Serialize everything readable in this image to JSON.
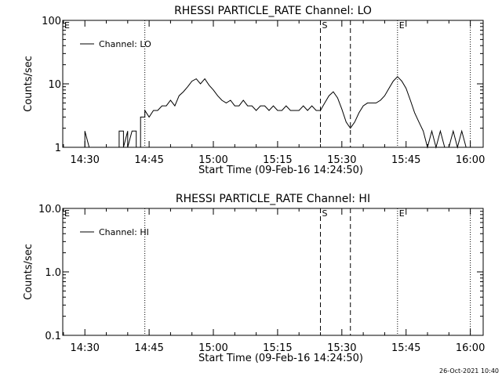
{
  "window": {
    "timestamp": "26-Oct-2021 10:40"
  },
  "chart_data": [
    {
      "type": "line",
      "title": "RHESSI PARTICLE_RATE Channel: LO",
      "xlabel": "Start Time (09-Feb-16 14:24:50)",
      "ylabel": "Counts/sec",
      "yscale": "log",
      "ylim": [
        1,
        100
      ],
      "ytick_labels": [
        "1",
        "10",
        "100"
      ],
      "xlim": [
        "14:24:50",
        "16:03:00"
      ],
      "xtick_labels": [
        "14:30",
        "14:45",
        "15:00",
        "15:15",
        "15:30",
        "15:45",
        "16:00"
      ],
      "legend": "top-left",
      "markers": {
        "S": "15:25",
        "E": "15:43",
        "E_left": "E"
      },
      "vertical_lines": {
        "dotted": [
          "14:44",
          "15:43",
          "16:00"
        ],
        "dashed": [
          "15:25",
          "15:32"
        ]
      },
      "series": [
        {
          "name": "Channel: LO",
          "color": "#000000",
          "points": [
            [
              "14:30",
              1
            ],
            [
              "14:30",
              1.8
            ],
            [
              "14:31",
              1
            ],
            [
              "14:38",
              1
            ],
            [
              "14:38",
              1.8
            ],
            [
              "14:39",
              1.8
            ],
            [
              "14:39",
              1
            ],
            [
              "14:40",
              1.8
            ],
            [
              "14:40",
              1
            ],
            [
              "14:41",
              1.8
            ],
            [
              "14:42",
              1.8
            ],
            [
              "14:42",
              1
            ],
            [
              "14:43",
              1
            ],
            [
              "14:43",
              3
            ],
            [
              "14:44",
              3
            ],
            [
              "14:44",
              3.8
            ],
            [
              "14:45",
              3
            ],
            [
              "14:46",
              3.8
            ],
            [
              "14:47",
              3.8
            ],
            [
              "14:48",
              4.5
            ],
            [
              "14:49",
              4.5
            ],
            [
              "14:50",
              5.5
            ],
            [
              "14:51",
              4.5
            ],
            [
              "14:52",
              6.5
            ],
            [
              "14:53",
              7.5
            ],
            [
              "14:54",
              9
            ],
            [
              "14:55",
              11
            ],
            [
              "14:56",
              12
            ],
            [
              "14:57",
              10
            ],
            [
              "14:58",
              12
            ],
            [
              "14:59",
              9.5
            ],
            [
              "15:00",
              8
            ],
            [
              "15:01",
              6.5
            ],
            [
              "15:02",
              5.5
            ],
            [
              "15:03",
              5
            ],
            [
              "15:04",
              5.5
            ],
            [
              "15:05",
              4.5
            ],
            [
              "15:06",
              4.5
            ],
            [
              "15:07",
              5.5
            ],
            [
              "15:08",
              4.5
            ],
            [
              "15:09",
              4.5
            ],
            [
              "15:10",
              3.8
            ],
            [
              "15:11",
              4.5
            ],
            [
              "15:12",
              4.5
            ],
            [
              "15:13",
              3.8
            ],
            [
              "15:14",
              4.5
            ],
            [
              "15:15",
              3.8
            ],
            [
              "15:16",
              3.8
            ],
            [
              "15:17",
              4.5
            ],
            [
              "15:18",
              3.8
            ],
            [
              "15:19",
              3.8
            ],
            [
              "15:20",
              3.8
            ],
            [
              "15:21",
              4.5
            ],
            [
              "15:22",
              3.8
            ],
            [
              "15:23",
              4.5
            ],
            [
              "15:24",
              3.8
            ],
            [
              "15:25",
              3.8
            ],
            [
              "15:26",
              5
            ],
            [
              "15:27",
              6.5
            ],
            [
              "15:28",
              7.5
            ],
            [
              "15:29",
              6
            ],
            [
              "15:30",
              4
            ],
            [
              "15:31",
              2.5
            ],
            [
              "15:32",
              2
            ],
            [
              "15:33",
              2.5
            ],
            [
              "15:34",
              3.5
            ],
            [
              "15:35",
              4.5
            ],
            [
              "15:36",
              5
            ],
            [
              "15:37",
              5
            ],
            [
              "15:38",
              5
            ],
            [
              "15:39",
              5.5
            ],
            [
              "15:40",
              6.5
            ],
            [
              "15:41",
              8.5
            ],
            [
              "15:42",
              11
            ],
            [
              "15:43",
              13
            ],
            [
              "15:44",
              11
            ],
            [
              "15:45",
              8.5
            ],
            [
              "15:46",
              5.5
            ],
            [
              "15:47",
              3.5
            ],
            [
              "15:48",
              2.5
            ],
            [
              "15:49",
              1.8
            ],
            [
              "15:50",
              1
            ],
            [
              "15:51",
              1.8
            ],
            [
              "15:52",
              1
            ],
            [
              "15:53",
              1.8
            ],
            [
              "15:54",
              1
            ],
            [
              "15:55",
              1
            ],
            [
              "15:56",
              1.8
            ],
            [
              "15:57",
              1
            ],
            [
              "15:58",
              1.8
            ],
            [
              "15:59",
              1
            ]
          ]
        }
      ]
    },
    {
      "type": "line",
      "title": "RHESSI PARTICLE_RATE Channel: HI",
      "xlabel": "Start Time (09-Feb-16 14:24:50)",
      "ylabel": "Counts/sec",
      "yscale": "log",
      "ylim": [
        0.1,
        10
      ],
      "ytick_labels": [
        "0.1",
        "1.0",
        "10.0"
      ],
      "xlim": [
        "14:24:50",
        "16:03:00"
      ],
      "xtick_labels": [
        "14:30",
        "14:45",
        "15:00",
        "15:15",
        "15:30",
        "15:45",
        "16:00"
      ],
      "legend": "top-left",
      "markers": {
        "S": "15:25",
        "E": "15:43",
        "E_left": "E"
      },
      "vertical_lines": {
        "dotted": [
          "14:44",
          "15:43",
          "16:00"
        ],
        "dashed": [
          "15:25",
          "15:32"
        ]
      },
      "series": [
        {
          "name": "Channel: HI",
          "color": "#000000",
          "points": []
        }
      ]
    }
  ]
}
